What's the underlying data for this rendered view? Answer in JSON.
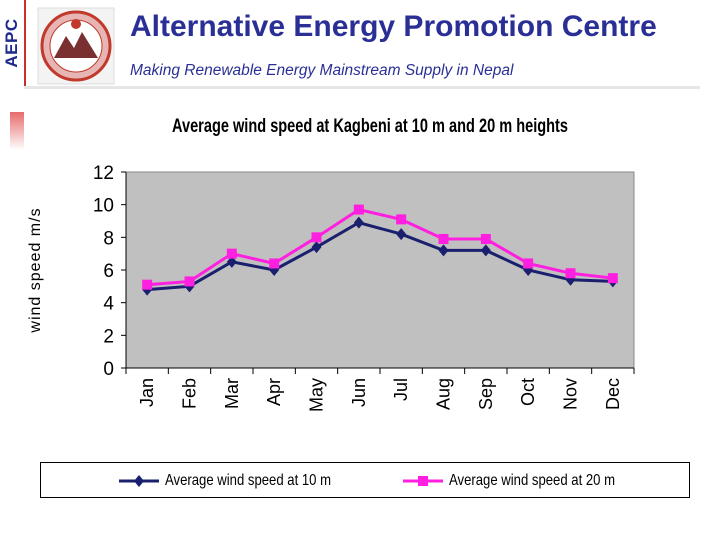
{
  "header": {
    "side_tag": "AEPC",
    "title": "Alternative Energy Promotion Centre",
    "subtitle": "Making Renewable Energy Mainstream Supply in Nepal"
  },
  "colors": {
    "title": "#2a2f96",
    "series_10m": "#1a1f6e",
    "series_20m": "#ff1fe0",
    "plot_bg": "#c0c0c0"
  },
  "chart_data": {
    "type": "line",
    "title": "Average wind speed at Kagbeni at 10 m and 20 m heights",
    "xlabel": "",
    "ylabel": "wind speed m/s",
    "categories": [
      "Jan",
      "Feb",
      "Mar",
      "Apr",
      "May",
      "Jun",
      "Jul",
      "Aug",
      "Sep",
      "Oct",
      "Nov",
      "Dec"
    ],
    "yticks": [
      0,
      2,
      4,
      6,
      8,
      10,
      12
    ],
    "ylim": [
      0,
      12
    ],
    "series": [
      {
        "name": "Average wind speed at 10 m",
        "values": [
          4.8,
          5.0,
          6.5,
          6.0,
          7.4,
          8.9,
          8.2,
          7.2,
          7.2,
          6.0,
          5.4,
          5.3
        ]
      },
      {
        "name": "Average wind speed at 20 m",
        "values": [
          5.1,
          5.3,
          7.0,
          6.4,
          8.0,
          9.7,
          9.1,
          7.9,
          7.9,
          6.4,
          5.8,
          5.5
        ]
      }
    ],
    "legend": "bottom"
  }
}
